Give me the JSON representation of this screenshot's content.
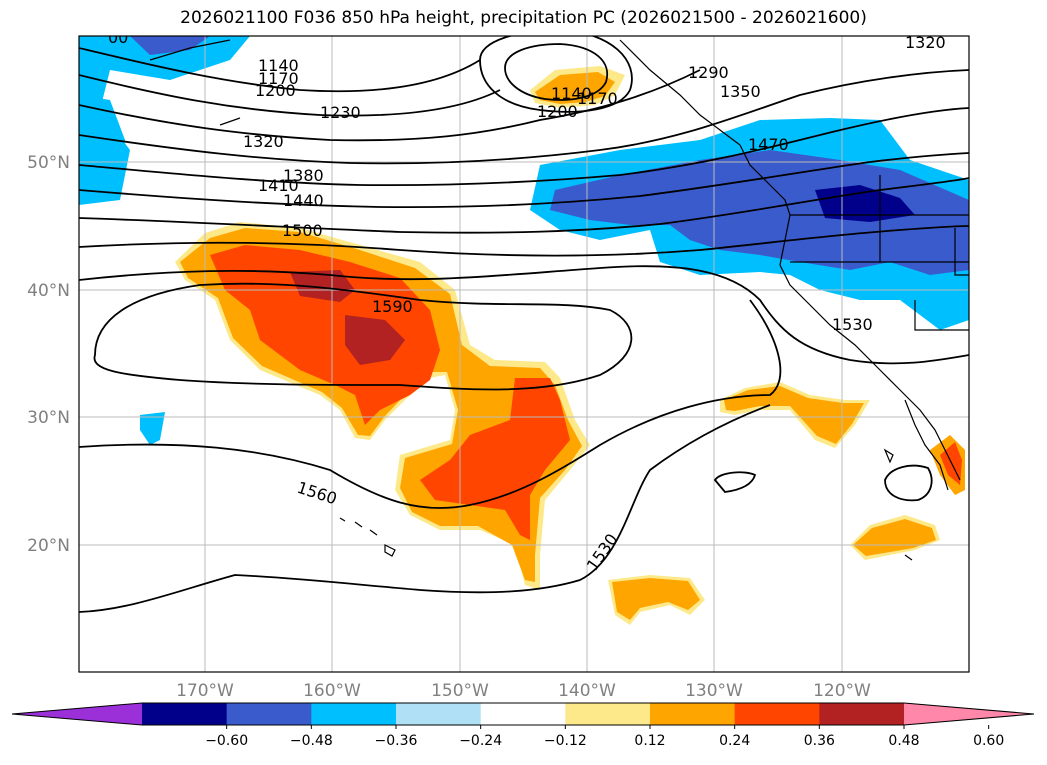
{
  "title": "2026021100 F036 850 hPa height, precipitation PC (2026021500 - 2026021600)",
  "lat_labels": [
    "50°N",
    "40°N",
    "30°N",
    "20°N"
  ],
  "lon_labels": [
    "170°W",
    "160°W",
    "150°W",
    "140°W",
    "130°W",
    "120°W"
  ],
  "contour_labels": [
    "1140",
    "1170",
    "1200",
    "1230",
    "1320",
    "1380",
    "1410",
    "1440",
    "1500",
    "1590",
    "1140",
    "1170",
    "1200",
    "1290",
    "1350",
    "1470",
    "1530",
    "1320",
    "1560",
    "1530",
    "00"
  ],
  "colorbar": {
    "ticks": [
      "−0.60",
      "−0.48",
      "−0.36",
      "−0.24",
      "−0.12",
      "0.12",
      "0.24",
      "0.36",
      "0.48",
      "0.60"
    ],
    "colors": [
      "#9b30d9",
      "#00008b",
      "#3a5bcc",
      "#00bfff",
      "#b0e0f5",
      "#ffffff",
      "#fde98a",
      "#ffa500",
      "#ff4500",
      "#b22222",
      "#ff88aa"
    ]
  }
}
